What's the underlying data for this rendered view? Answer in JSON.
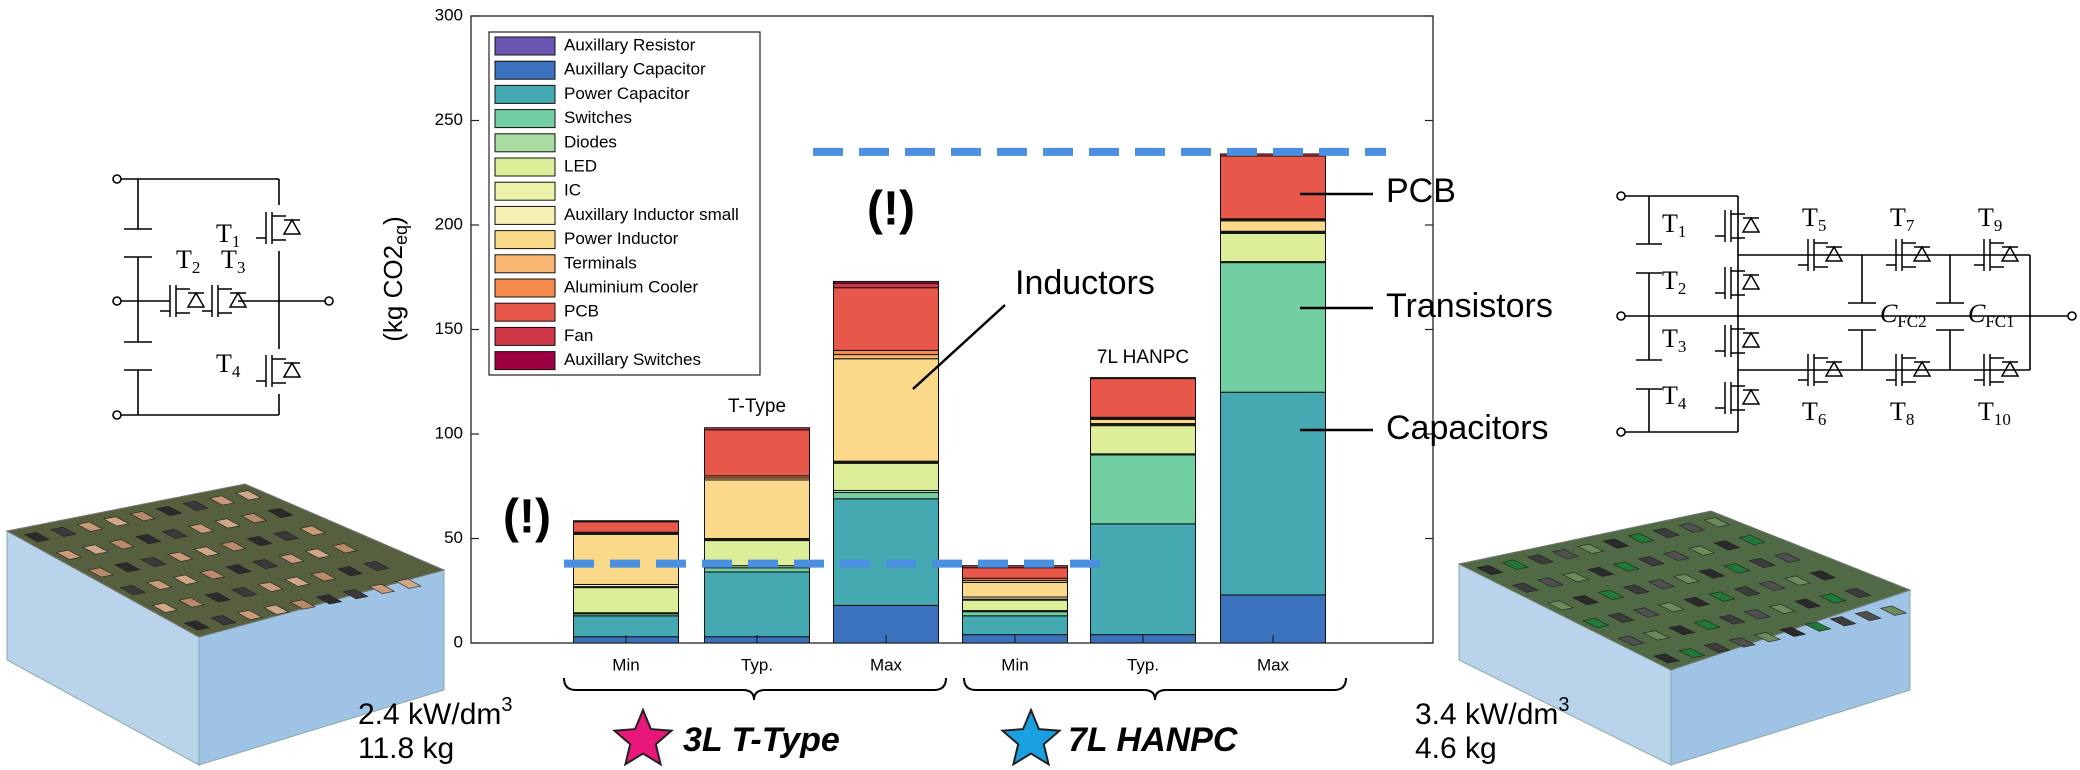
{
  "chart_data": {
    "type": "bar",
    "stacked": true,
    "ylabel": {
      "text": "(kg CO2",
      "sub": "eq",
      "end": ")"
    },
    "categories": [
      "Min",
      "Typ.",
      "Max",
      "Min",
      "Typ.",
      "Max"
    ],
    "groups": [
      "3L T-Type",
      "7L HANPC"
    ],
    "group_colors": [
      "#e8177a",
      "#1aa0e0"
    ],
    "ylim": [
      0,
      300
    ],
    "yticks": [
      0,
      50,
      100,
      150,
      200,
      250,
      300
    ],
    "legend": "upper-left",
    "series": [
      {
        "name": "Auxillary Resistor",
        "color": "#6a55b0",
        "values": [
          0,
          0,
          0,
          0,
          0,
          0
        ]
      },
      {
        "name": "Auxillary Capacitor",
        "color": "#3a72bd",
        "values": [
          3,
          3,
          18,
          4,
          4,
          23
        ]
      },
      {
        "name": "Power Capacitor",
        "color": "#45a9b2",
        "values": [
          10,
          31,
          51,
          9,
          53,
          97
        ]
      },
      {
        "name": "Switches",
        "color": "#72cfa2",
        "values": [
          1,
          2,
          3,
          2,
          33,
          62
        ]
      },
      {
        "name": "Diodes",
        "color": "#a8dca0",
        "values": [
          0.5,
          1,
          1,
          0.5,
          0.5,
          0.5
        ]
      },
      {
        "name": "LED",
        "color": "#dcee98",
        "values": [
          12,
          12,
          13,
          5,
          13.5,
          13.5
        ]
      },
      {
        "name": "IC",
        "color": "#ecf3a8",
        "values": [
          0.5,
          0.5,
          0.5,
          0.5,
          0.5,
          0.5
        ]
      },
      {
        "name": "Auxillary Inductor small",
        "color": "#f6f0b2",
        "values": [
          1,
          0.5,
          0.5,
          1,
          0.5,
          0.5
        ]
      },
      {
        "name": "Power Inductor",
        "color": "#fbd98a",
        "values": [
          24,
          28,
          49,
          7,
          2,
          5
        ]
      },
      {
        "name": "Terminals",
        "color": "#f9b572",
        "values": [
          0.5,
          1,
          2,
          1,
          0.5,
          0.5
        ]
      },
      {
        "name": "Aluminium Cooler",
        "color": "#f58a4c",
        "values": [
          0.5,
          1,
          2,
          1,
          0.5,
          0.5
        ]
      },
      {
        "name": "PCB",
        "color": "#e8584a",
        "values": [
          5,
          22,
          30,
          5,
          18.5,
          30
        ]
      },
      {
        "name": "Fan",
        "color": "#d0384a",
        "values": [
          0.5,
          1,
          2,
          1,
          0.5,
          1
        ]
      },
      {
        "name": "Auxillary Switches",
        "color": "#9e0142",
        "values": [
          0,
          0,
          1,
          0,
          0,
          0
        ]
      }
    ],
    "annotations": [
      "T-Type",
      "7L HANPC",
      "Inductors",
      "PCB",
      "Transistors",
      "Capacitors",
      "(!)",
      "(!)"
    ],
    "reference_lines": [
      235,
      38
    ]
  },
  "left_system": {
    "power_density": {
      "text": "2.4 kW/dm",
      "sup": "3"
    },
    "mass": "11.8 kg",
    "circuit_labels": [
      {
        "main": "T",
        "sub": "1"
      },
      {
        "main": "T",
        "sub": "2"
      },
      {
        "main": "T",
        "sub": "3"
      },
      {
        "main": "T",
        "sub": "4"
      }
    ]
  },
  "right_system": {
    "power_density": {
      "text": "3.4 kW/dm",
      "sup": "3"
    },
    "mass": "4.6 kg",
    "circuit_labels": [
      {
        "main": "T",
        "sub": "1"
      },
      {
        "main": "T",
        "sub": "2"
      },
      {
        "main": "T",
        "sub": "3"
      },
      {
        "main": "T",
        "sub": "4"
      },
      {
        "main": "T",
        "sub": "5"
      },
      {
        "main": "T",
        "sub": "6"
      },
      {
        "main": "T",
        "sub": "7"
      },
      {
        "main": "T",
        "sub": "8"
      },
      {
        "main": "T",
        "sub": "9"
      },
      {
        "main": "T",
        "sub": "10"
      },
      {
        "main": "C",
        "sub": "FC2"
      },
      {
        "main": "C",
        "sub": "FC1"
      }
    ]
  }
}
